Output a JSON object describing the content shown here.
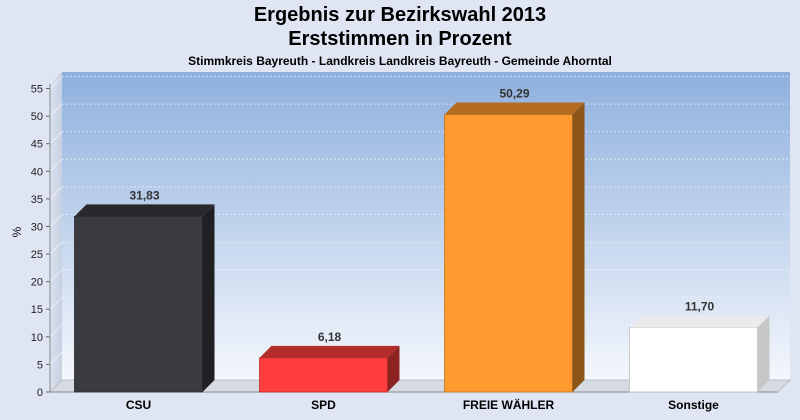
{
  "chart_data": {
    "type": "bar",
    "title": "Ergebnis zur Bezirkswahl 2013",
    "subtitle": "Erststimmen in Prozent",
    "caption": "Stimmkreis Bayreuth - Landkreis Landkreis Bayreuth - Gemeinde Ahorntal",
    "ylabel": "%",
    "xlabel": "",
    "ylim": [
      0,
      58
    ],
    "yticks": [
      0,
      5,
      10,
      15,
      20,
      25,
      30,
      35,
      40,
      45,
      50,
      55
    ],
    "grid": true,
    "categories": [
      "CSU",
      "SPD",
      "FREIE WÄHLER",
      "Sonstige"
    ],
    "values": [
      31.83,
      6.18,
      50.29,
      11.7
    ],
    "value_labels": [
      "31,83",
      "6,18",
      "50,29",
      "11,70"
    ],
    "colors": [
      "#3a3b40",
      "#ff3d3d",
      "#ff9a2e",
      "#ffffff"
    ]
  }
}
